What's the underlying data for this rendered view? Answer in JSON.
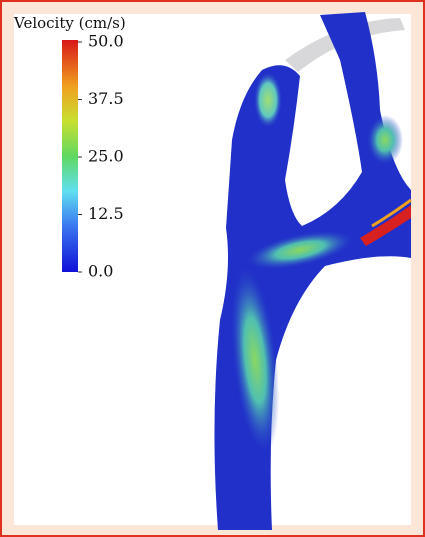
{
  "colorbar": {
    "title": "Velocity (cm/s)",
    "range": [
      0,
      50
    ],
    "ticks": [
      {
        "value": 50,
        "label": "50.0"
      },
      {
        "value": 37.5,
        "label": "37.5"
      },
      {
        "value": 25,
        "label": "25.0"
      },
      {
        "value": 12.5,
        "label": "12.5"
      },
      {
        "value": 0,
        "label": "0.0"
      }
    ]
  }
}
